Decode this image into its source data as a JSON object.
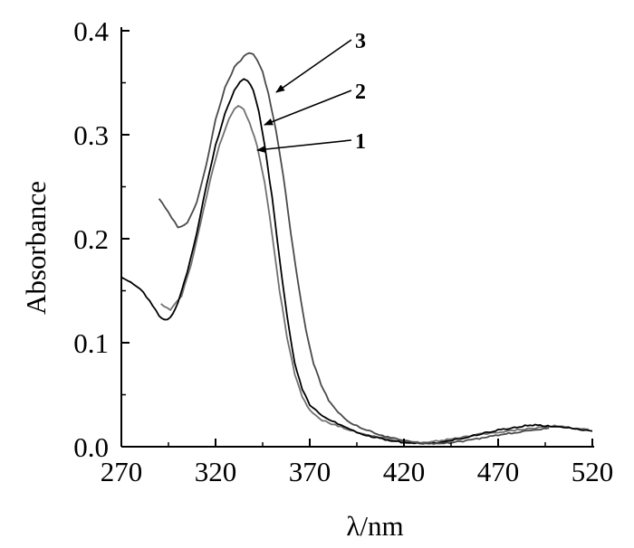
{
  "chart_data": {
    "type": "line",
    "title": "",
    "xlabel": "λ/nm",
    "ylabel": "Absorbance",
    "xlim": [
      270,
      520
    ],
    "ylim": [
      0.0,
      0.4
    ],
    "xticks": [
      270,
      320,
      370,
      420,
      470,
      520
    ],
    "yticks": [
      0.0,
      0.1,
      0.2,
      0.3,
      0.4
    ],
    "xtick_labels": [
      "270",
      "320",
      "370",
      "420",
      "470",
      "520"
    ],
    "ytick_labels": [
      "0.0",
      "0.1",
      "0.2",
      "0.3",
      "0.4"
    ],
    "grid": false,
    "legend": "none",
    "series": [
      {
        "label": "1",
        "color": "#707070",
        "x": [
          291,
          296,
          302,
          307,
          312,
          317,
          322,
          327,
          330,
          332,
          335,
          338,
          342,
          346,
          350,
          354,
          358,
          362,
          366,
          370,
          375,
          380,
          385,
          390,
          395,
          400,
          410,
          420,
          430,
          440,
          450,
          460,
          470,
          480,
          490,
          500,
          510,
          518
        ],
        "y": [
          0.137,
          0.132,
          0.145,
          0.175,
          0.215,
          0.255,
          0.29,
          0.315,
          0.325,
          0.328,
          0.324,
          0.312,
          0.29,
          0.255,
          0.205,
          0.15,
          0.105,
          0.07,
          0.048,
          0.035,
          0.027,
          0.023,
          0.02,
          0.017,
          0.014,
          0.012,
          0.008,
          0.005,
          0.004,
          0.006,
          0.009,
          0.012,
          0.014,
          0.016,
          0.018,
          0.02,
          0.018,
          0.017
        ]
      },
      {
        "label": "2",
        "color": "#000000",
        "x": [
          270,
          275,
          280,
          285,
          290,
          293,
          296,
          300,
          305,
          310,
          315,
          320,
          325,
          330,
          333,
          335,
          337,
          340,
          343,
          346,
          350,
          354,
          358,
          362,
          366,
          370,
          375,
          380,
          385,
          390,
          395,
          400,
          410,
          420,
          430,
          440,
          450,
          460,
          470,
          480,
          487,
          495,
          505,
          515,
          520
        ],
        "y": [
          0.163,
          0.158,
          0.152,
          0.14,
          0.126,
          0.122,
          0.124,
          0.138,
          0.168,
          0.205,
          0.25,
          0.29,
          0.32,
          0.343,
          0.351,
          0.354,
          0.352,
          0.343,
          0.322,
          0.29,
          0.24,
          0.18,
          0.125,
          0.08,
          0.055,
          0.04,
          0.032,
          0.026,
          0.022,
          0.018,
          0.014,
          0.011,
          0.007,
          0.004,
          0.003,
          0.004,
          0.008,
          0.012,
          0.016,
          0.019,
          0.021,
          0.02,
          0.019,
          0.016,
          0.015
        ]
      },
      {
        "label": "3",
        "color": "#4a4a4a",
        "x": [
          290,
          295,
          300,
          305,
          310,
          315,
          320,
          325,
          330,
          335,
          338,
          340,
          342,
          345,
          348,
          352,
          356,
          360,
          364,
          368,
          372,
          376,
          380,
          385,
          390,
          395,
          400,
          410,
          420,
          430,
          440,
          450,
          460,
          470,
          480,
          490,
          497
        ],
        "y": [
          0.239,
          0.225,
          0.211,
          0.215,
          0.235,
          0.27,
          0.315,
          0.345,
          0.365,
          0.375,
          0.379,
          0.377,
          0.372,
          0.36,
          0.34,
          0.305,
          0.26,
          0.205,
          0.155,
          0.112,
          0.08,
          0.06,
          0.045,
          0.033,
          0.025,
          0.02,
          0.016,
          0.01,
          0.006,
          0.003,
          0.003,
          0.005,
          0.008,
          0.011,
          0.014,
          0.016,
          0.018
        ]
      }
    ]
  }
}
